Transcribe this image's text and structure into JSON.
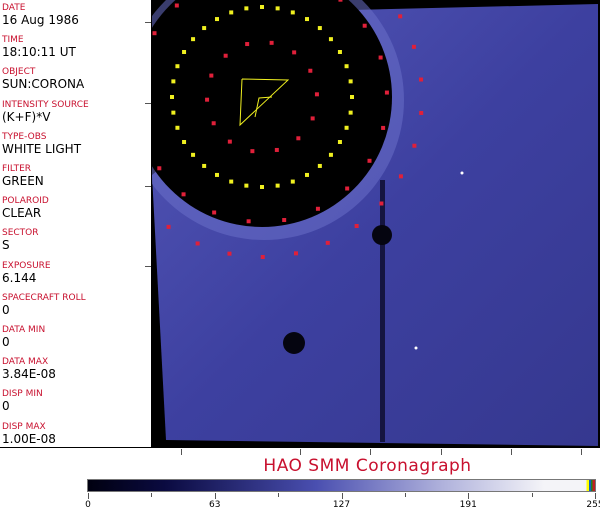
{
  "fields": [
    {
      "label": "DATE",
      "value": "16 Aug 1986"
    },
    {
      "label": "TIME",
      "value": "18:10:11 UT"
    },
    {
      "label": "OBJECT",
      "value": "SUN:CORONA"
    },
    {
      "label": "INTENSITY SOURCE",
      "value": "(K+F)*V"
    },
    {
      "label": "TYPE-OBS",
      "value": "WHITE LIGHT"
    },
    {
      "label": "FILTER",
      "value": "GREEN"
    },
    {
      "label": "POLAROID",
      "value": "CLEAR"
    },
    {
      "label": "SECTOR",
      "value": "S"
    },
    {
      "label": "EXPOSURE",
      "value": "6.144"
    },
    {
      "label": "SPACECRAFT ROLL",
      "value": "0"
    },
    {
      "label": "DATA MIN",
      "value": "0"
    },
    {
      "label": "DATA MAX",
      "value": "3.84E-08"
    },
    {
      "label": "DISP MIN",
      "value": "0"
    },
    {
      "label": "DISP MAX",
      "value": "1.00E-08"
    }
  ],
  "title": "HAO  SMM Coronagraph",
  "colorbar": {
    "ticks": [
      "0",
      "63",
      "127",
      "191",
      "255"
    ],
    "colors": {
      "dark": "#000010",
      "mid": "#4a4fb0",
      "light": "#f4f4f8"
    }
  },
  "colors": {
    "label": "#c8102e",
    "overlay_red": "#e0203a",
    "overlay_yellow": "#f0f020"
  }
}
